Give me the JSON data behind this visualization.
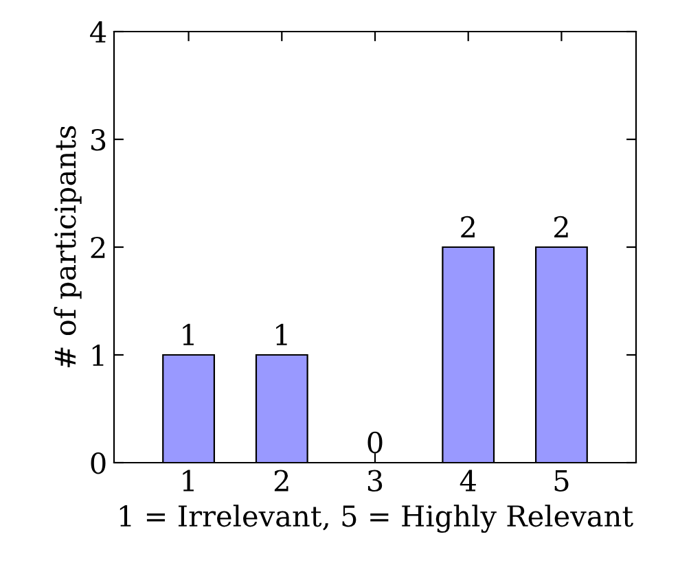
{
  "chart_data": {
    "type": "bar",
    "xlabel": "1 = Irrelevant, 5 = Highly Relevant",
    "ylabel": "# of participants",
    "x": [
      1,
      2,
      3,
      4,
      5
    ],
    "values": [
      1,
      1,
      0,
      2,
      2
    ],
    "color": "#9999ff",
    "xlim": [
      0.2,
      5.8
    ],
    "xticks": [
      1,
      2,
      3,
      4,
      5
    ],
    "ylim": [
      0,
      4
    ],
    "yticks": [
      0,
      1,
      2,
      3,
      4
    ],
    "data_labels": true,
    "grid": false
  }
}
